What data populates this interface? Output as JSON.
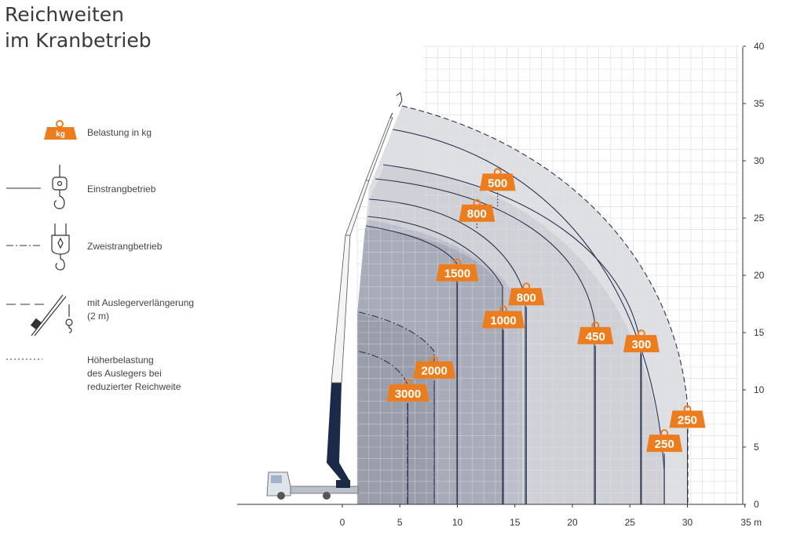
{
  "title": {
    "line1": "Reichweiten",
    "line2": "im Kranbetrieb"
  },
  "legend": {
    "weight_icon_text": "kg",
    "load": "Belastung in kg",
    "single": "Einstrangbetrieb",
    "double": "Zweistrangbetrieb",
    "extension_line1": "mit Auslegerverlängerung",
    "extension_line2": "(2 m)",
    "overload_line1": "Höherbelastung",
    "overload_line2": "des Auslegers bei",
    "overload_line3": "reduzierter Reichweite"
  },
  "colors": {
    "accent": "#ec7d1f",
    "grid": "#d6d6d6",
    "crane": "#1c2a4a",
    "zone_outer": "#dedfe3",
    "zone_mid": "#cfd1d7",
    "zone_inner": "#b9bcc6",
    "zone_core": "#a6aab6"
  },
  "chart_data": {
    "type": "load-chart",
    "x_unit": "m",
    "xlim": [
      -5,
      35
    ],
    "ylim": [
      0,
      40
    ],
    "x_ticks": [
      0,
      5,
      10,
      15,
      20,
      25,
      30,
      35
    ],
    "y_ticks": [
      0,
      5,
      10,
      15,
      20,
      25,
      30,
      35,
      40
    ],
    "x_tick_labels": [
      "0",
      "5",
      "10",
      "15",
      "20",
      "25",
      "30",
      "35 m"
    ],
    "y_tick_labels": [
      "0",
      "5",
      "10",
      "15",
      "20",
      "25",
      "30",
      "35",
      "40"
    ],
    "load_labels": [
      {
        "text": "500",
        "x": 13.5,
        "y": 28.2,
        "drop_to": 26.0,
        "dotted": true
      },
      {
        "text": "800",
        "x": 11.7,
        "y": 25.5,
        "drop_to": 24.0,
        "dotted": true
      },
      {
        "text": "1500",
        "x": 10.0,
        "y": 20.3,
        "drop_to": 0
      },
      {
        "text": "800",
        "x": 16.0,
        "y": 18.2,
        "drop_to": 0
      },
      {
        "text": "1000",
        "x": 14.0,
        "y": 16.2,
        "drop_to": 0
      },
      {
        "text": "450",
        "x": 22.0,
        "y": 14.8,
        "drop_to": 0
      },
      {
        "text": "300",
        "x": 26.0,
        "y": 14.1,
        "drop_to": 0
      },
      {
        "text": "2000",
        "x": 8.0,
        "y": 11.8,
        "drop_to": 0
      },
      {
        "text": "3000",
        "x": 5.7,
        "y": 9.8,
        "drop_to": 0
      },
      {
        "text": "250",
        "x": 30.0,
        "y": 7.5,
        "drop_to": 0
      },
      {
        "text": "250",
        "x": 28.0,
        "y": 5.4,
        "drop_to": 0
      }
    ]
  }
}
